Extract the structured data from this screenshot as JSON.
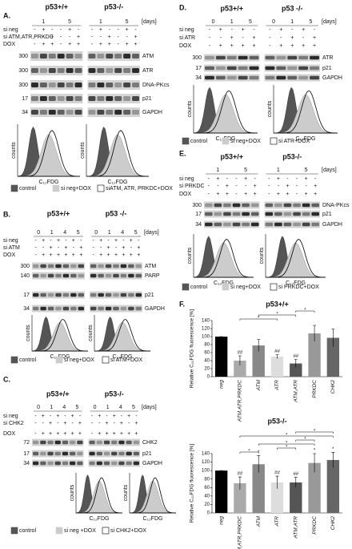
{
  "panels": {
    "A": {
      "label": "A.",
      "genotypes": [
        "p53+/+",
        "p53-/-"
      ],
      "days": [
        "1",
        "5"
      ],
      "days_unit": "[days]",
      "treatments": [
        {
          "name": "si neg",
          "signs": [
            "-",
            "+",
            "-",
            "-",
            "+",
            "-",
            "-",
            "+",
            "-",
            "-",
            "+",
            "-"
          ]
        },
        {
          "name": "si ATM,ATR,PRKDC",
          "signs": [
            "-",
            "-",
            "+",
            "-",
            "-",
            "+",
            "-",
            "-",
            "+",
            "-",
            "-",
            "+"
          ]
        },
        {
          "name": "DOX",
          "signs": [
            "-",
            "+",
            "+",
            "-",
            "+",
            "+",
            "-",
            "+",
            "+",
            "-",
            "+",
            "+"
          ]
        }
      ],
      "markers": [
        "300",
        "300",
        "300",
        "17",
        "34"
      ],
      "bands": [
        "ATM",
        "ATR",
        "DNA-PKcs",
        "p21",
        "GAPDH"
      ],
      "hist_x": "C₁₂FDG",
      "hist_y": "counts",
      "legend": [
        "control",
        "si neg+DOX",
        "siATM, ATR, PRKDC+DOX"
      ]
    },
    "B": {
      "label": "B.",
      "genotypes": [
        "p53+/+",
        "p53 -/-"
      ],
      "days": [
        "0",
        "1",
        "4",
        "5"
      ],
      "days_unit": "[days]",
      "treatments": [
        {
          "name": "si neg",
          "signs": [
            "-",
            "+",
            "-",
            "+",
            "-",
            "+",
            "-",
            "-",
            "+",
            "-",
            "+",
            "-",
            "+",
            "-"
          ]
        },
        {
          "name": "si ATM",
          "signs": [
            "-",
            "-",
            "+",
            "-",
            "+",
            "-",
            "+",
            "-",
            "-",
            "+",
            "-",
            "+",
            "-",
            "+"
          ]
        },
        {
          "name": "DOX",
          "signs": [
            "-",
            "+",
            "+",
            "+",
            "+",
            "+",
            "+",
            "-",
            "+",
            "+",
            "+",
            "+",
            "+",
            "+"
          ]
        }
      ],
      "markers": [
        "300",
        "140",
        "17",
        "34"
      ],
      "bands": [
        "ATM",
        "PARP",
        "p21",
        "GAPDH"
      ],
      "hist_x": "C₁₂FDG",
      "hist_y": "counts",
      "legend": [
        "control",
        "si neg+DOX",
        "si ATM+DOX"
      ]
    },
    "C": {
      "label": "C.",
      "genotypes": [
        "p53+/+",
        "p53-/-"
      ],
      "days": [
        "0",
        "1",
        "4",
        "5"
      ],
      "days_unit": "[days]",
      "treatments": [
        {
          "name": "si neg",
          "signs": [
            "-",
            "+",
            "-",
            "+",
            "-",
            "+",
            "-",
            "-",
            "+",
            "-",
            "+",
            "-",
            "+",
            "-"
          ]
        },
        {
          "name": "si CHK2",
          "signs": [
            "-",
            "-",
            "+",
            "-",
            "+",
            "-",
            "+",
            "-",
            "-",
            "+",
            "-",
            "+",
            "-",
            "+"
          ]
        },
        {
          "name": "DOX",
          "signs": [
            "-",
            "+",
            "+",
            "+",
            "+",
            "+",
            "+",
            "-",
            "+",
            "+",
            "+",
            "+",
            "+",
            "+"
          ]
        }
      ],
      "markers": [
        "72",
        "17",
        "34"
      ],
      "bands": [
        "CHK2",
        "p21",
        "GAPDH"
      ],
      "hist_x": "C₁₂FDG",
      "hist_y": "counts",
      "legend": [
        "control",
        "si neg +DOX",
        "si CHK2+DOX"
      ]
    },
    "D": {
      "label": "D.",
      "genotypes": [
        "p53+/+",
        "p53 -/-"
      ],
      "days": [
        "0",
        "1",
        "5"
      ],
      "days_unit": "[days]",
      "treatments": [
        {
          "name": "si neg",
          "signs": [
            "-",
            "+",
            "-",
            "+",
            "-",
            "-",
            "+",
            "-",
            "+",
            "-"
          ]
        },
        {
          "name": "si ATR",
          "signs": [
            "-",
            "-",
            "+",
            "-",
            "+",
            "-",
            "-",
            "+",
            "-",
            "+"
          ]
        },
        {
          "name": "DOX",
          "signs": [
            "-",
            "+",
            "+",
            "+",
            "+",
            "-",
            "+",
            "+",
            "+",
            "+"
          ]
        }
      ],
      "markers": [
        "300",
        "17",
        "34"
      ],
      "bands": [
        "ATR",
        "p21",
        "GAPDH"
      ],
      "hist_x": "C₁₂FDG",
      "hist_y": "counts",
      "legend": [
        "control",
        "si neg+DOX",
        "si ATR+DOX"
      ]
    },
    "E": {
      "label": "E.",
      "genotypes": [
        "p53+/+",
        "p53-/-"
      ],
      "days": [
        "1",
        "5"
      ],
      "days_unit": "[days]",
      "treatments": [
        {
          "name": "si neg",
          "signs": [
            "-",
            "+",
            "-",
            "-",
            "+",
            "-",
            "-",
            "+",
            "-",
            "-",
            "+",
            "-"
          ]
        },
        {
          "name": "si PRKDC",
          "signs": [
            "-",
            "-",
            "+",
            "-",
            "-",
            "+",
            "-",
            "-",
            "+",
            "-",
            "-",
            "+"
          ]
        },
        {
          "name": "DOX",
          "signs": [
            "-",
            "+",
            "+",
            "-",
            "+",
            "+",
            "-",
            "+",
            "+",
            "-",
            "+",
            "+"
          ]
        }
      ],
      "markers": [
        "300",
        "17",
        "34"
      ],
      "bands": [
        "DNA-PKcs",
        "p21",
        "GAPDH"
      ],
      "hist_x": "C₁₂FDG",
      "hist_y": "counts",
      "legend": [
        "control",
        "si neg+DOX",
        "si PRKDC+DOX"
      ]
    },
    "F": {
      "label": "F."
    }
  },
  "chart_data": [
    {
      "type": "bar",
      "title": "p53+/+",
      "ylabel": "Relative C₁₂FDG fluorescence [%]",
      "categories": [
        "neg",
        "ATM,ATR,PRKDC",
        "ATM",
        "ATR",
        "ATM,ATR",
        "PRKDC",
        "CHK2"
      ],
      "values": [
        100,
        40,
        78,
        50,
        33,
        108,
        97
      ],
      "errors": [
        0,
        12,
        15,
        5,
        10,
        20,
        22
      ],
      "colors": [
        "#000000",
        "#aaaaaa",
        "#888888",
        "#dddddd",
        "#555555",
        "#999999",
        "#666666"
      ],
      "bar_labels": [
        null,
        "##",
        null,
        "##",
        "##",
        null,
        null
      ],
      "brackets": [
        {
          "between": [
            "ATM,ATR,PRKDC",
            "ATR"
          ],
          "label": "*"
        },
        {
          "between": [
            "ATM",
            "ATM,ATR"
          ],
          "label": "*"
        },
        {
          "between": [
            "ATM,ATR",
            "PRKDC"
          ],
          "label": "*"
        }
      ],
      "ylim": [
        0,
        140
      ],
      "yticks": [
        0,
        20,
        40,
        60,
        80,
        100,
        120,
        140
      ]
    },
    {
      "type": "bar",
      "title": "p53-/-",
      "ylabel": "Relative C₁₂FDG fluorescence [%]",
      "categories": [
        "neg",
        "ATM,ATR,PRKDC",
        "ATM",
        "ATR",
        "ATM,ATR",
        "PRKDC",
        "CHK2"
      ],
      "values": [
        100,
        70,
        115,
        72,
        72,
        118,
        125
      ],
      "errors": [
        0,
        15,
        20,
        15,
        12,
        22,
        18
      ],
      "colors": [
        "#000000",
        "#aaaaaa",
        "#888888",
        "#dddddd",
        "#555555",
        "#999999",
        "#666666"
      ],
      "bar_labels": [
        null,
        "##",
        "*",
        "##",
        "##",
        "*",
        "*"
      ],
      "brackets": [
        {
          "between": [
            "ATM,ATR,PRKDC",
            "ATM"
          ],
          "label": "*"
        },
        {
          "between": [
            "ATR",
            "ATM,ATR"
          ],
          "label": "*"
        },
        {
          "between": [
            "ATM",
            "PRKDC"
          ],
          "label": "*"
        },
        {
          "between": [
            "ATM,ATR",
            "PRKDC"
          ],
          "label": "*"
        },
        {
          "between": [
            "ATM,ATR,PRKDC",
            "CHK2"
          ],
          "label": "*"
        },
        {
          "between": [
            "ATM,ATR",
            "CHK2"
          ],
          "label": "*"
        }
      ],
      "ylim": [
        0,
        140
      ],
      "yticks": [
        0,
        20,
        40,
        60,
        80,
        100,
        120,
        140
      ]
    }
  ]
}
